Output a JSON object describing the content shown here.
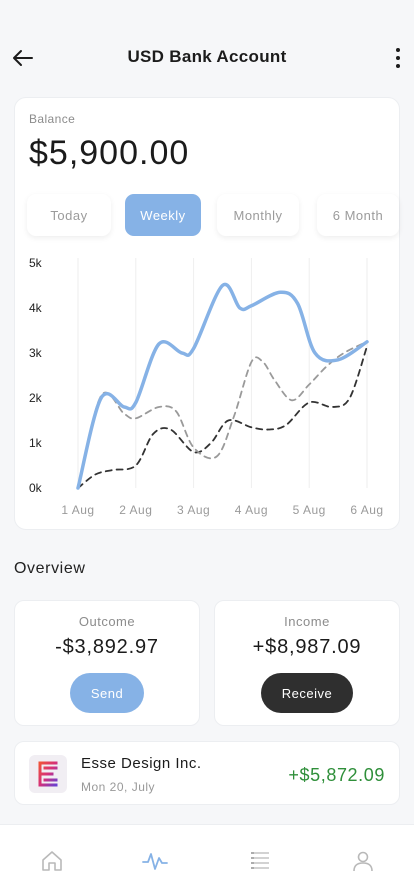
{
  "header": {
    "title": "USD Bank Account",
    "back_icon": "arrow-left-icon",
    "more_icon": "more-vertical-icon"
  },
  "balance": {
    "label": "Balance",
    "amount": "$5,900.00"
  },
  "period_tabs": [
    {
      "label": "Today",
      "active": false
    },
    {
      "label": "Weekly",
      "active": true
    },
    {
      "label": "Monthly",
      "active": false
    },
    {
      "label": "6 Month",
      "active": false
    }
  ],
  "colors": {
    "accent": "#86b2e6",
    "dark": "#2f2f2f",
    "positive": "#2f8f3a",
    "muted": "#8c8c8c"
  },
  "chart_data": {
    "type": "line",
    "x": [
      "1 Aug",
      "2 Aug",
      "3 Aug",
      "4 Aug",
      "5 Aug",
      "6 Aug"
    ],
    "yticks": [
      "0k",
      "1k",
      "2k",
      "3k",
      "4k",
      "5k"
    ],
    "ylim": [
      0,
      5000
    ],
    "grid": true,
    "legend": "none",
    "series": [
      {
        "style": "solid",
        "color": "#86b2e6",
        "points": [
          [
            0,
            0
          ],
          [
            0.4,
            2000
          ],
          [
            0.8,
            1800
          ],
          [
            1.0,
            1900
          ],
          [
            1.4,
            3200
          ],
          [
            1.8,
            3000
          ],
          [
            2.0,
            3100
          ],
          [
            2.5,
            4500
          ],
          [
            2.8,
            4000
          ],
          [
            3.0,
            4050
          ],
          [
            3.5,
            4350
          ],
          [
            3.8,
            4100
          ],
          [
            4.1,
            3000
          ],
          [
            4.5,
            2850
          ],
          [
            5.0,
            3250
          ]
        ]
      },
      {
        "style": "dashed",
        "color": "#9a9a9a",
        "points": [
          [
            0,
            0
          ],
          [
            0.4,
            2050
          ],
          [
            0.8,
            1650
          ],
          [
            1.0,
            1550
          ],
          [
            1.4,
            1800
          ],
          [
            1.7,
            1700
          ],
          [
            2.0,
            900
          ],
          [
            2.4,
            700
          ],
          [
            2.7,
            1600
          ],
          [
            3.0,
            2800
          ],
          [
            3.2,
            2800
          ],
          [
            3.4,
            2400
          ],
          [
            3.7,
            1950
          ],
          [
            4.0,
            2300
          ],
          [
            4.3,
            2700
          ],
          [
            4.6,
            3000
          ],
          [
            5.0,
            3250
          ]
        ]
      },
      {
        "style": "dashed",
        "color": "#333333",
        "points": [
          [
            0,
            0
          ],
          [
            0.3,
            300
          ],
          [
            0.6,
            400
          ],
          [
            1.0,
            500
          ],
          [
            1.3,
            1200
          ],
          [
            1.6,
            1300
          ],
          [
            2.0,
            800
          ],
          [
            2.3,
            1000
          ],
          [
            2.6,
            1500
          ],
          [
            3.0,
            1350
          ],
          [
            3.3,
            1300
          ],
          [
            3.6,
            1400
          ],
          [
            4.0,
            1900
          ],
          [
            4.4,
            1800
          ],
          [
            4.7,
            2000
          ],
          [
            5.0,
            3150
          ]
        ]
      }
    ]
  },
  "overview": {
    "title": "Overview",
    "outcome": {
      "label": "Outcome",
      "value": "-$3,892.97",
      "button": "Send"
    },
    "income": {
      "label": "Income",
      "value": "+$8,987.09",
      "button": "Receive"
    }
  },
  "transaction": {
    "name": "Esse Design Inc.",
    "date": "Mon 20, July",
    "amount": "+$5,872.09",
    "logo_icon": "esse-logo-icon"
  },
  "bottom_nav": [
    {
      "icon": "home-icon",
      "active": false
    },
    {
      "icon": "activity-icon",
      "active": true
    },
    {
      "icon": "list-icon",
      "active": false
    },
    {
      "icon": "user-icon",
      "active": false
    }
  ]
}
